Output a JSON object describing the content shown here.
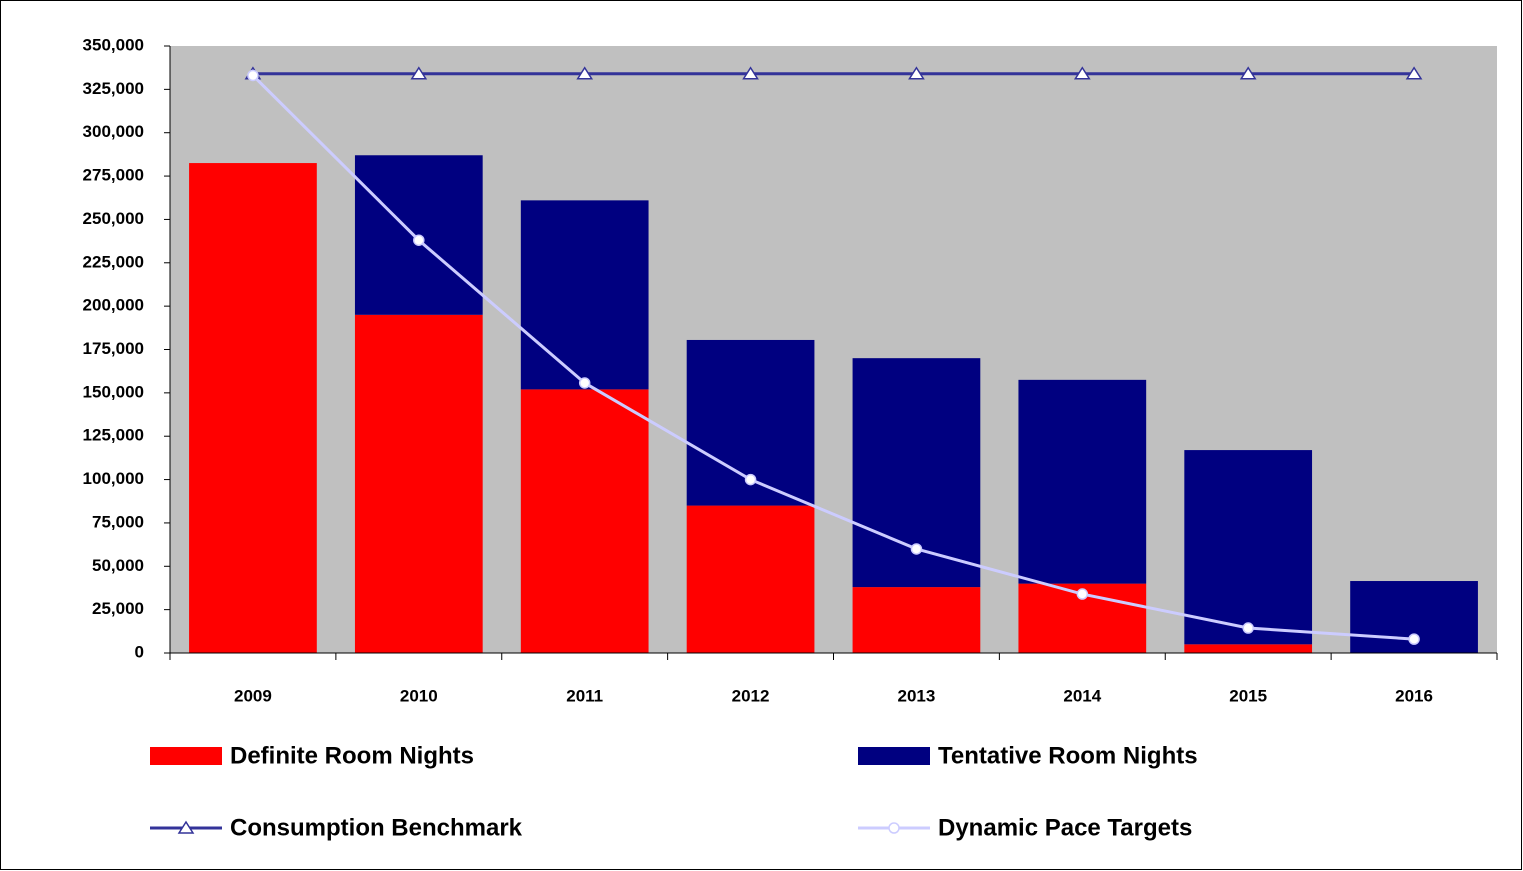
{
  "chart_data": {
    "type": "bar",
    "stacked": true,
    "categories": [
      "2009",
      "2010",
      "2011",
      "2012",
      "2013",
      "2014",
      "2015",
      "2016"
    ],
    "series": [
      {
        "name": "Definite Room Nights",
        "type": "bar",
        "color": "#ff0000",
        "values": [
          282500,
          195000,
          152000,
          85000,
          38000,
          40000,
          5000,
          0
        ]
      },
      {
        "name": "Tentative Room Nights",
        "type": "bar",
        "color": "#000080",
        "values": [
          0,
          92000,
          109000,
          95500,
          132000,
          117500,
          112000,
          41500
        ]
      },
      {
        "name": "Consumption Benchmark",
        "type": "line",
        "marker": "triangle",
        "color": "#333399",
        "values": [
          334000,
          334000,
          334000,
          334000,
          334000,
          334000,
          334000,
          334000
        ]
      },
      {
        "name": "Dynamic Pace Targets",
        "type": "line",
        "marker": "circle",
        "color": "#ccccff",
        "values": [
          333000,
          238000,
          155700,
          100000,
          60000,
          34000,
          14400,
          8000
        ]
      }
    ],
    "ylim": [
      0,
      350000
    ],
    "yticks": [
      0,
      {
        "value": 25000,
        "label": "25,000"
      },
      {
        "value": 50000,
        "label": "50,000"
      },
      {
        "value": 75000,
        "label": "75,000"
      },
      {
        "value": 100000,
        "label": "100,000"
      },
      {
        "value": 125000,
        "label": "125,000"
      },
      {
        "value": 150000,
        "label": "150,000"
      },
      {
        "value": 175000,
        "label": "175,000"
      },
      {
        "value": 200000,
        "label": "200,000"
      },
      {
        "value": 225000,
        "label": "225,000"
      },
      {
        "value": 250000,
        "label": "250,000"
      },
      {
        "value": 275000,
        "label": "275,000"
      },
      {
        "value": 300000,
        "label": "300,000"
      },
      {
        "value": 325000,
        "label": "325,000"
      },
      {
        "value": 350000,
        "label": "350,000"
      }
    ],
    "plot_background": "#c0c0c0",
    "grid": false
  }
}
